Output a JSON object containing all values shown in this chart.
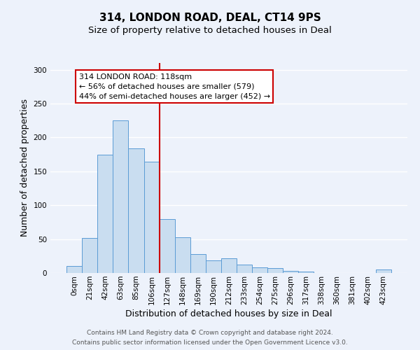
{
  "title": "314, LONDON ROAD, DEAL, CT14 9PS",
  "subtitle": "Size of property relative to detached houses in Deal",
  "xlabel": "Distribution of detached houses by size in Deal",
  "ylabel": "Number of detached properties",
  "bar_labels": [
    "0sqm",
    "21sqm",
    "42sqm",
    "63sqm",
    "85sqm",
    "106sqm",
    "127sqm",
    "148sqm",
    "169sqm",
    "190sqm",
    "212sqm",
    "233sqm",
    "254sqm",
    "275sqm",
    "296sqm",
    "317sqm",
    "338sqm",
    "360sqm",
    "381sqm",
    "402sqm",
    "423sqm"
  ],
  "bar_heights": [
    10,
    52,
    175,
    225,
    184,
    164,
    80,
    53,
    28,
    19,
    22,
    12,
    8,
    7,
    3,
    2,
    0,
    0,
    0,
    0,
    5
  ],
  "bar_color": "#c9ddf0",
  "bar_edge_color": "#5b9bd5",
  "vline_x": 5.5,
  "vline_color": "#cc0000",
  "annotation_title": "314 LONDON ROAD: 118sqm",
  "annotation_line1": "← 56% of detached houses are smaller (579)",
  "annotation_line2": "44% of semi-detached houses are larger (452) →",
  "annotation_box_color": "#ffffff",
  "annotation_box_edge": "#cc0000",
  "ylim": [
    0,
    310
  ],
  "footer1": "Contains HM Land Registry data © Crown copyright and database right 2024.",
  "footer2": "Contains public sector information licensed under the Open Government Licence v3.0.",
  "background_color": "#edf2fb",
  "grid_color": "#ffffff",
  "title_fontsize": 11,
  "subtitle_fontsize": 9.5,
  "axis_label_fontsize": 9,
  "tick_fontsize": 7.5,
  "footer_fontsize": 6.5,
  "ann_fontsize": 8
}
